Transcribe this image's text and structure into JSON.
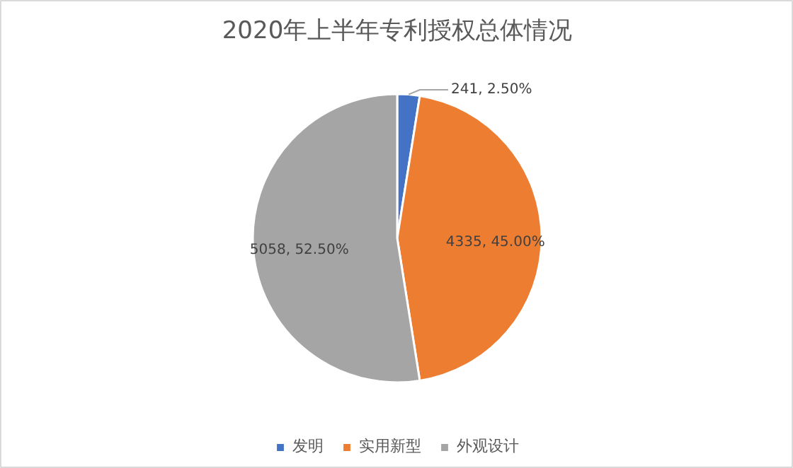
{
  "chart_data": {
    "type": "pie",
    "title": "2020年上半年专利授权总体情况",
    "categories": [
      "发明",
      "实用新型",
      "外观设计"
    ],
    "values": [
      241,
      4335,
      5058
    ],
    "colors": [
      "#4472c4",
      "#ed7d31",
      "#a5a5a5"
    ],
    "value_labels": [
      "241, 2.50%",
      "4335, 45.00%",
      "5058, 52.50%"
    ],
    "legend": "bottom"
  }
}
